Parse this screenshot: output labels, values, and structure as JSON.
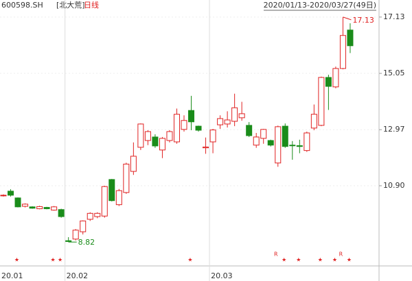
{
  "chart_data": {
    "type": "candlestick",
    "code": "600598.SH",
    "name": "[北大荒]",
    "period": "日线",
    "range": "2020/01/13-2020/03/27(49日)",
    "categories": [
      "20.01",
      null,
      null,
      null,
      null,
      null,
      null,
      null,
      null,
      "20.02",
      null,
      null,
      null,
      null,
      null,
      null,
      null,
      null,
      null,
      null,
      null,
      null,
      null,
      null,
      null,
      null,
      null,
      null,
      null,
      "20.03",
      null,
      null,
      null,
      null,
      null,
      null,
      null,
      null,
      null,
      null,
      null,
      null,
      null,
      null,
      null,
      null,
      null,
      null,
      null
    ],
    "open": [
      10.55,
      10.7,
      10.45,
      10.14,
      10.12,
      10.05,
      10.1,
      10.0,
      10.02,
      8.87,
      8.93,
      9.2,
      9.66,
      9.76,
      9.78,
      11.13,
      10.2,
      10.65,
      11.43,
      12.32,
      12.57,
      12.7,
      12.22,
      12.57,
      12.52,
      12.98,
      13.68,
      13.1,
      12.3,
      12.52,
      13.15,
      13.18,
      13.28,
      13.41,
      13.13,
      12.4,
      12.65,
      12.57,
      11.74,
      13.1,
      12.4,
      12.38,
      12.2,
      13.03,
      13.13,
      14.9,
      14.55,
      15.23,
      16.65
    ],
    "high": [
      10.58,
      10.77,
      10.47,
      10.25,
      10.14,
      10.16,
      10.12,
      10.15,
      10.05,
      9.0,
      9.3,
      9.62,
      9.92,
      9.92,
      10.9,
      11.15,
      10.78,
      11.75,
      12.5,
      13.2,
      12.95,
      12.8,
      12.7,
      12.95,
      13.75,
      13.5,
      14.22,
      13.12,
      12.68,
      13.0,
      13.5,
      13.65,
      14.3,
      14.0,
      13.25,
      12.85,
      13.0,
      12.6,
      13.12,
      13.2,
      12.55,
      12.6,
      12.9,
      13.9,
      14.93,
      15.0,
      15.3,
      17.13,
      16.9
    ],
    "low": [
      10.5,
      10.5,
      10.1,
      10.1,
      10.05,
      10.03,
      10.03,
      9.98,
      9.72,
      8.82,
      8.88,
      9.1,
      9.6,
      9.7,
      9.72,
      10.32,
      10.15,
      10.6,
      11.3,
      12.22,
      12.4,
      12.3,
      11.92,
      12.5,
      12.45,
      12.9,
      12.95,
      12.9,
      12.08,
      12.1,
      13.0,
      13.05,
      13.1,
      13.3,
      12.7,
      12.3,
      12.45,
      12.35,
      11.6,
      12.3,
      11.86,
      12.1,
      12.15,
      12.95,
      13.1,
      13.7,
      14.5,
      15.2,
      15.8
    ],
    "close": [
      10.55,
      10.55,
      10.12,
      10.22,
      10.07,
      10.13,
      10.05,
      10.12,
      9.76,
      8.84,
      9.26,
      9.6,
      9.88,
      9.88,
      10.87,
      10.35,
      10.72,
      11.7,
      11.99,
      13.18,
      12.9,
      12.37,
      12.65,
      12.9,
      13.54,
      13.31,
      13.26,
      12.95,
      12.33,
      12.96,
      13.38,
      13.33,
      13.78,
      13.56,
      12.75,
      12.7,
      12.98,
      12.4,
      13.08,
      12.35,
      12.38,
      12.35,
      12.85,
      13.54,
      14.9,
      14.57,
      15.23,
      16.45,
      16.07
    ],
    "up_color": "#e02020",
    "down_color": "#1a8c1a",
    "ylim": [
      8.47,
      17.38
    ],
    "yticks": [
      17.13,
      15.05,
      12.97,
      {
        "value": 10.9,
        "label": "10.90"
      }
    ],
    "annotations": [
      {
        "text": "17.13",
        "index": 47,
        "value": 17.13
      },
      {
        "text": "8.82",
        "index": 9,
        "value": 8.82
      }
    ],
    "stars": {
      "symbol": "★",
      "at": [
        1,
        6,
        7,
        25,
        38,
        40,
        43,
        45,
        47
      ]
    },
    "r_marks": {
      "symbol": "R",
      "at": [
        38,
        47
      ]
    }
  }
}
